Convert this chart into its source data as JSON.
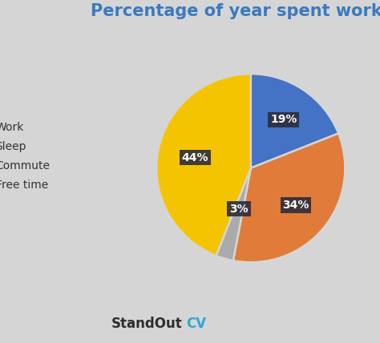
{
  "title": "Percentage of year spent working",
  "title_color": "#3a7abf",
  "title_fontsize": 15,
  "background_color": "#d5d5d5",
  "labels": [
    "Work",
    "Sleep",
    "Commute",
    "Free time"
  ],
  "values": [
    19,
    34,
    3,
    44
  ],
  "colors": [
    "#4472c4",
    "#e07b39",
    "#aaaaaa",
    "#f5c400"
  ],
  "pct_labels": [
    "19%",
    "34%",
    "3%",
    "44%"
  ],
  "pct_label_color": "#ffffff",
  "pct_box_color": "#2d2d3a",
  "legend_labels": [
    "Work",
    "Sleep",
    "Commute",
    "Free time"
  ],
  "startangle": 90,
  "watermark": "StandOut",
  "watermark_cv": "CV",
  "watermark_color": "#2d2d2d",
  "watermark_cv_color": "#2ea6d5"
}
